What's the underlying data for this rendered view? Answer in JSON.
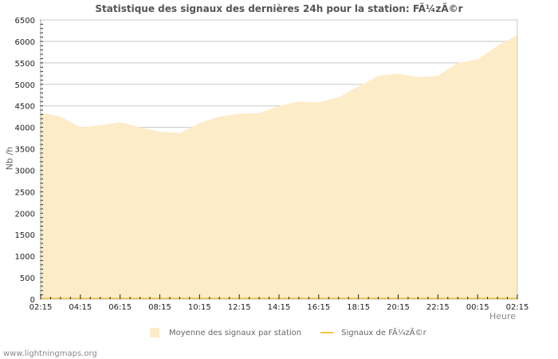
{
  "page": {
    "title": "Statistique des signaux des dernières 24h pour la station: FÃ¼zÃ©r",
    "footer": "www.lightningmaps.org"
  },
  "colors": {
    "area_fill": "#fdecc8",
    "station_line": "#f5c842",
    "grid": "#c8c8c8",
    "axis_text": "#222222"
  },
  "legend": {
    "items": [
      {
        "label": "Moyenne des signaux par station",
        "type": "area"
      },
      {
        "label": "Signaux de FÃ¼zÃ©r",
        "type": "line"
      }
    ]
  },
  "chart_data": {
    "type": "area",
    "title": "Statistique des signaux des dernières 24h pour la station: FÃ¼zÃ©r",
    "xlabel": "Heure",
    "ylabel": "Nb /h",
    "ylim": [
      0,
      6500
    ],
    "yticks": [
      0,
      500,
      1000,
      1500,
      2000,
      2500,
      3000,
      3500,
      4000,
      4500,
      5000,
      5500,
      6000,
      6500
    ],
    "xticks": [
      "02:15",
      "04:15",
      "06:15",
      "08:15",
      "10:15",
      "12:15",
      "14:15",
      "16:15",
      "18:15",
      "20:15",
      "22:15",
      "00:15",
      "02:15"
    ],
    "grid": true,
    "legend_position": "bottom",
    "x": [
      "02:15",
      "03:15",
      "04:15",
      "05:15",
      "06:15",
      "07:15",
      "08:15",
      "09:15",
      "10:15",
      "11:15",
      "12:15",
      "13:15",
      "14:15",
      "15:15",
      "16:15",
      "17:15",
      "18:15",
      "19:15",
      "20:15",
      "21:15",
      "22:15",
      "23:15",
      "00:15",
      "01:15",
      "02:15"
    ],
    "series": [
      {
        "name": "Moyenne des signaux par station",
        "type": "area",
        "values": [
          4340,
          4250,
          4000,
          4050,
          4120,
          4000,
          3900,
          3870,
          4100,
          4250,
          4320,
          4330,
          4500,
          4600,
          4580,
          4700,
          4950,
          5200,
          5250,
          5170,
          5200,
          5500,
          5580,
          5900,
          6150
        ]
      },
      {
        "name": "Signaux de FÃ¼zÃ©r",
        "type": "line",
        "values": [
          0,
          0,
          0,
          0,
          0,
          0,
          0,
          0,
          0,
          0,
          0,
          0,
          0,
          0,
          0,
          0,
          0,
          0,
          0,
          0,
          0,
          0,
          0,
          0,
          0
        ]
      }
    ]
  }
}
